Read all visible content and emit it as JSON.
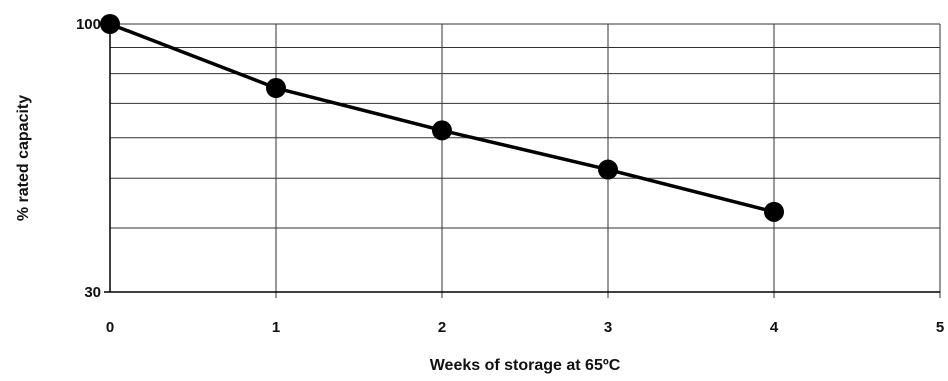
{
  "chart_data": {
    "type": "line",
    "title": "",
    "xlabel": "Weeks of storage at 65ºC",
    "ylabel": "% rated capacity",
    "xlim": [
      0,
      5
    ],
    "ylim": [
      30,
      100
    ],
    "y_scale": "log",
    "grid": true,
    "x_ticks": [
      "0",
      "1",
      "2",
      "3",
      "4",
      "5"
    ],
    "y_ticks": [
      "100",
      "30"
    ],
    "y_gridlines": [
      100,
      90,
      80,
      70,
      60,
      50,
      40,
      30
    ],
    "series": [
      {
        "x": [
          0,
          1,
          2,
          3,
          4
        ],
        "y": [
          100,
          75,
          62,
          52,
          43
        ]
      }
    ],
    "line_color": "#000000"
  }
}
